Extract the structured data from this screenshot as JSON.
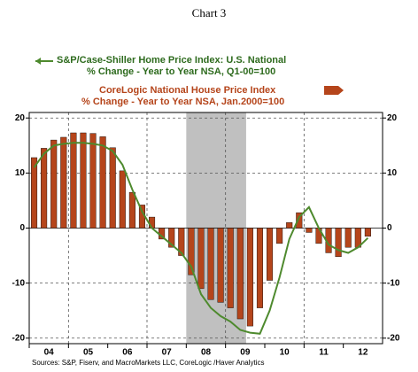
{
  "chart_data": {
    "type": "bar_line",
    "title": "Chart 3",
    "legend1": "S&P/Case-Shiller Home Price Index: U.S. National",
    "legend1_sub": "% Change - Year to Year    NSA, Q1-00=100",
    "legend2": "CoreLogic National House Price Index",
    "legend2_sub": "% Change - Year to Year    NSA, Jan.2000=100",
    "source": "Sources:  S&P, Fiserv, and MacroMarkets LLC, CoreLogic /Haver Analytics",
    "year_labels": [
      "04",
      "05",
      "06",
      "07",
      "08",
      "09",
      "10",
      "11",
      "12"
    ],
    "quarters_per_label": 4,
    "slots": 36,
    "shaded_span": [
      16,
      22.1
    ],
    "series": [
      {
        "name": "CoreLogic National House Price Index",
        "kind": "bar",
        "color": "#b5451b",
        "values": [
          12.8,
          14.5,
          16.0,
          16.5,
          17.3,
          17.3,
          17.2,
          16.6,
          14.6,
          10.4,
          6.5,
          4.2,
          2.0,
          -2.0,
          -3.5,
          -5.0,
          -8.5,
          -11.0,
          -13.0,
          -13.5,
          -14.5,
          -16.5,
          -17.8,
          -14.5,
          -9.5,
          -2.8,
          1.0,
          2.8,
          -0.8,
          -2.8,
          -4.5,
          -5.2,
          -3.5,
          -3.5,
          -1.5
        ]
      },
      {
        "name": "S&P/Case-Shiller Home Price Index: U.S. National",
        "kind": "line",
        "color": "#4e8a2e",
        "values": [
          11.0,
          13.5,
          15.0,
          15.3,
          15.5,
          15.5,
          15.3,
          15.0,
          14.0,
          11.5,
          7.0,
          3.0,
          0.0,
          -1.5,
          -3.0,
          -4.5,
          -7.0,
          -12.0,
          -14.5,
          -16.0,
          -17.0,
          -18.5,
          -19.0,
          -19.2,
          -15.0,
          -9.0,
          -2.0,
          2.0,
          3.8,
          0.0,
          -3.0,
          -4.0,
          -4.5,
          -3.5,
          -1.8
        ]
      }
    ],
    "ylim": [
      -21,
      21
    ],
    "yticks": [
      20,
      10,
      0,
      -10,
      -20
    ],
    "grid": true
  }
}
